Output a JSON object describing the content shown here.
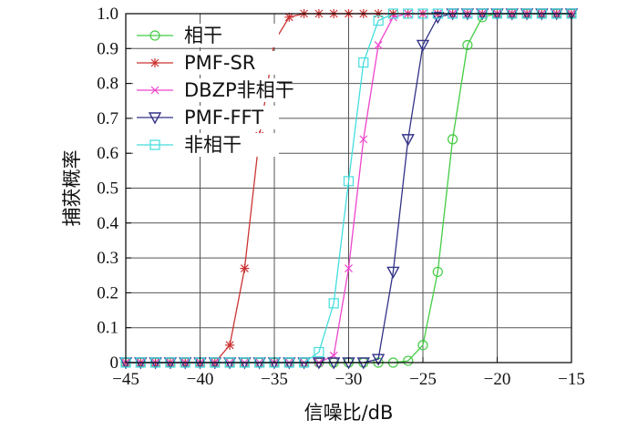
{
  "chart_data": {
    "type": "line",
    "xlabel": "信噪比/dB",
    "ylabel": "捕获概率",
    "xlim": [
      -45,
      -15
    ],
    "ylim": [
      0,
      1
    ],
    "xticks": [
      -45,
      -40,
      -35,
      -30,
      -25,
      -20,
      -15
    ],
    "xtick_labels": [
      "−45",
      "−40",
      "−35",
      "−30",
      "−25",
      "−20",
      "−15"
    ],
    "yticks": [
      0,
      0.1,
      0.2,
      0.3,
      0.4,
      0.5,
      0.6,
      0.7,
      0.8,
      0.9,
      1.0
    ],
    "ytick_labels": [
      "0",
      "0.1",
      "0.2",
      "0.3",
      "0.4",
      "0.5",
      "0.6",
      "0.7",
      "0.8",
      "0.9",
      "1.0"
    ],
    "grid": true,
    "legend_position": "top-left",
    "x": [
      -45,
      -44,
      -43,
      -42,
      -41,
      -40,
      -39,
      -38,
      -37,
      -36,
      -35,
      -34,
      -33,
      -32,
      -31,
      -30,
      -29,
      -28,
      -27,
      -26,
      -25,
      -24,
      -23,
      -22,
      -21,
      -20,
      -19,
      -18,
      -17,
      -16,
      -15
    ],
    "series": [
      {
        "name": "相干",
        "color": "#44cc44",
        "marker": "circle",
        "values": [
          0,
          0,
          0,
          0,
          0,
          0,
          0,
          0,
          0,
          0,
          0,
          0,
          0,
          0,
          0,
          0,
          0,
          0,
          0,
          0.005,
          0.05,
          0.26,
          0.64,
          0.91,
          0.99,
          1,
          1,
          1,
          1,
          1,
          1
        ]
      },
      {
        "name": "PMF-SR",
        "color": "#cc3333",
        "marker": "star",
        "values": [
          0,
          0,
          0,
          0,
          0,
          0,
          0,
          0.05,
          0.27,
          0.65,
          0.92,
          0.99,
          1,
          1,
          1,
          1,
          1,
          1,
          1,
          1,
          1,
          1,
          1,
          1,
          1,
          1,
          1,
          1,
          1,
          1,
          1
        ]
      },
      {
        "name": "DBZP非相干",
        "color": "#ee44cc",
        "marker": "x",
        "values": [
          0,
          0,
          0,
          0,
          0,
          0,
          0,
          0,
          0,
          0,
          0,
          0,
          0,
          0,
          0.02,
          0.27,
          0.64,
          0.91,
          0.99,
          1,
          1,
          1,
          1,
          1,
          1,
          1,
          1,
          1,
          1,
          1,
          1
        ]
      },
      {
        "name": "PMF-FFT",
        "color": "#333388",
        "marker": "triangle-down",
        "values": [
          0,
          0,
          0,
          0,
          0,
          0,
          0,
          0,
          0,
          0,
          0,
          0,
          0,
          0,
          0,
          0,
          0,
          0.01,
          0.26,
          0.64,
          0.91,
          0.99,
          1,
          1,
          1,
          1,
          1,
          1,
          1,
          1,
          1
        ]
      },
      {
        "name": "非相干",
        "color": "#44dddd",
        "marker": "square",
        "values": [
          0,
          0,
          0,
          0,
          0,
          0,
          0,
          0,
          0,
          0,
          0,
          0,
          0,
          0.03,
          0.17,
          0.52,
          0.86,
          0.98,
          1,
          1,
          1,
          1,
          1,
          1,
          1,
          1,
          1,
          1,
          1,
          1,
          1
        ]
      }
    ]
  }
}
